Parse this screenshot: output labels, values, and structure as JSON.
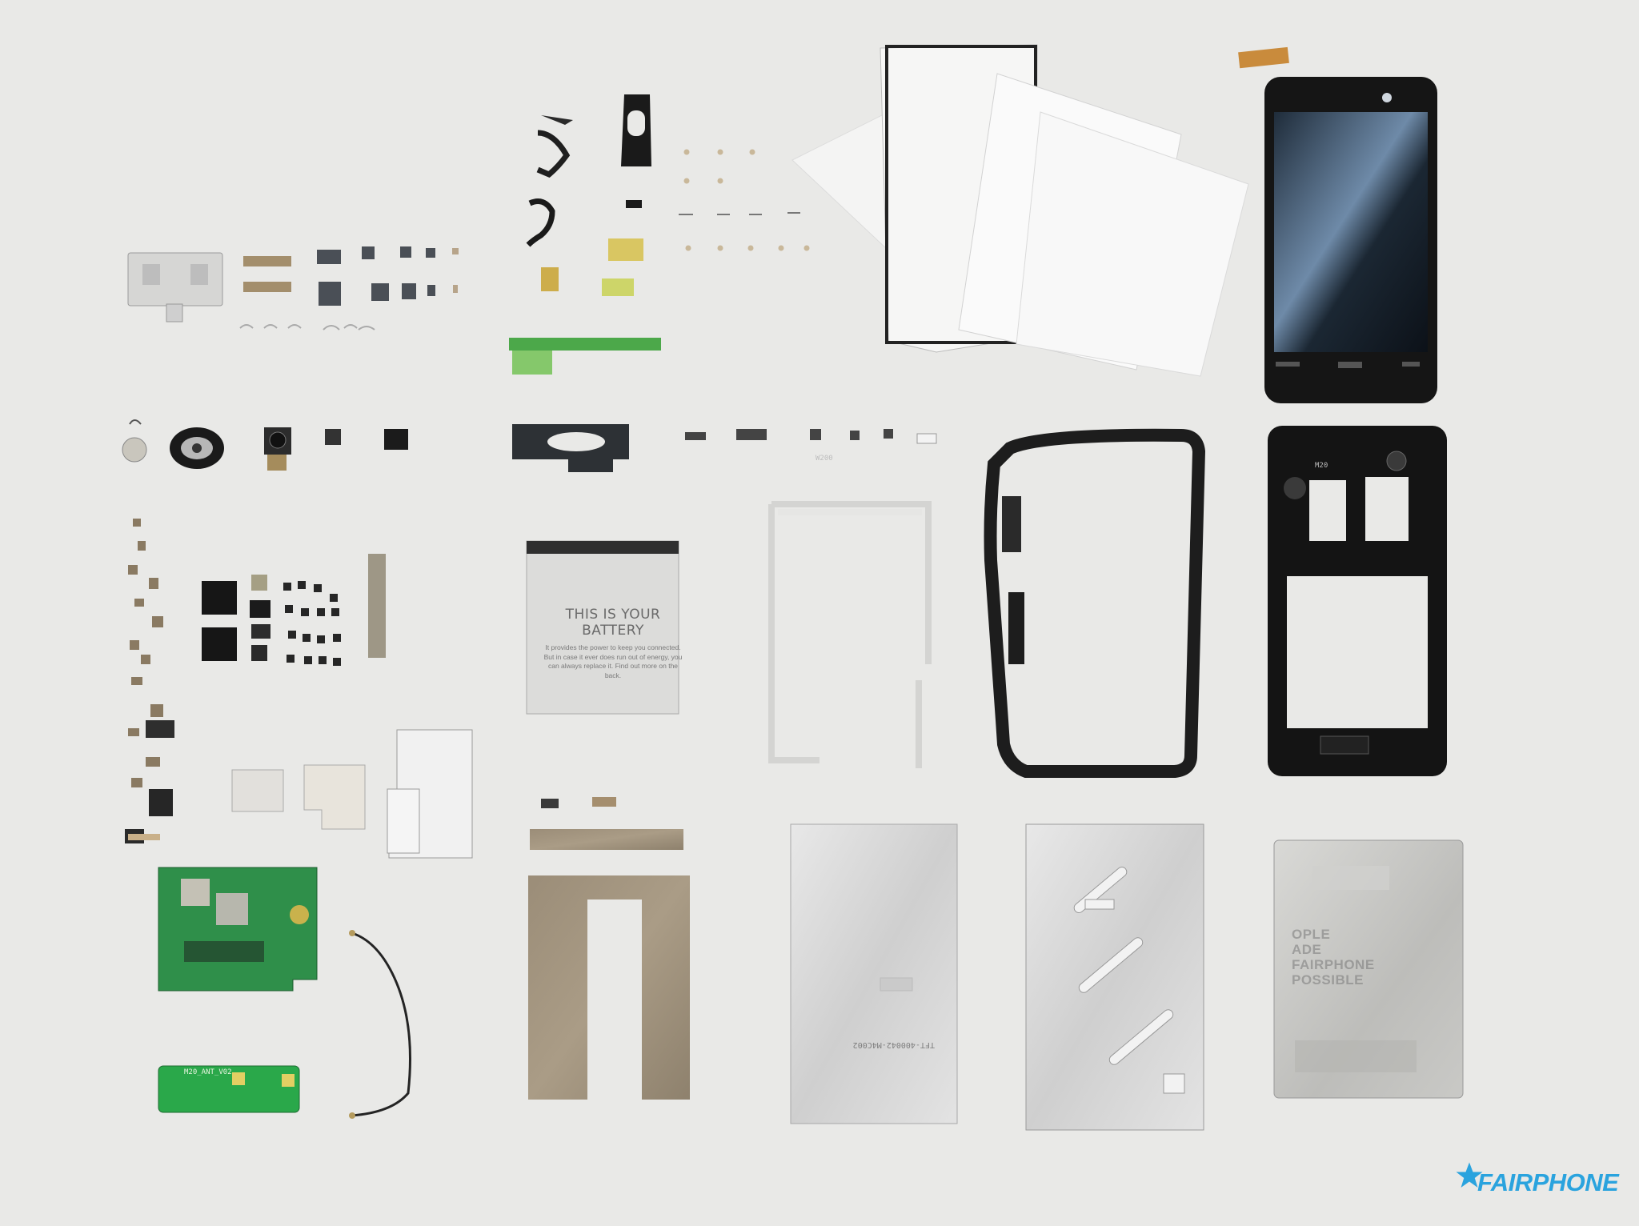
{
  "battery": {
    "title": "THIS IS YOUR BATTERY",
    "body": "It provides the power to keep you connected. But in case it ever does run out of energy, you can always replace it. Find out more on the back."
  },
  "back_cover": {
    "lines": [
      "OPLE",
      "ADE",
      "FAIRPHONE",
      "POSSIBLE"
    ]
  },
  "frame_label": "W200",
  "midframe_label": "M20",
  "plate_label": "TFT-400042-M4C002",
  "pcb_label": "M20_ANT_V02",
  "brand": {
    "name": "FAIRPHONE",
    "color": "#2aa3de"
  }
}
